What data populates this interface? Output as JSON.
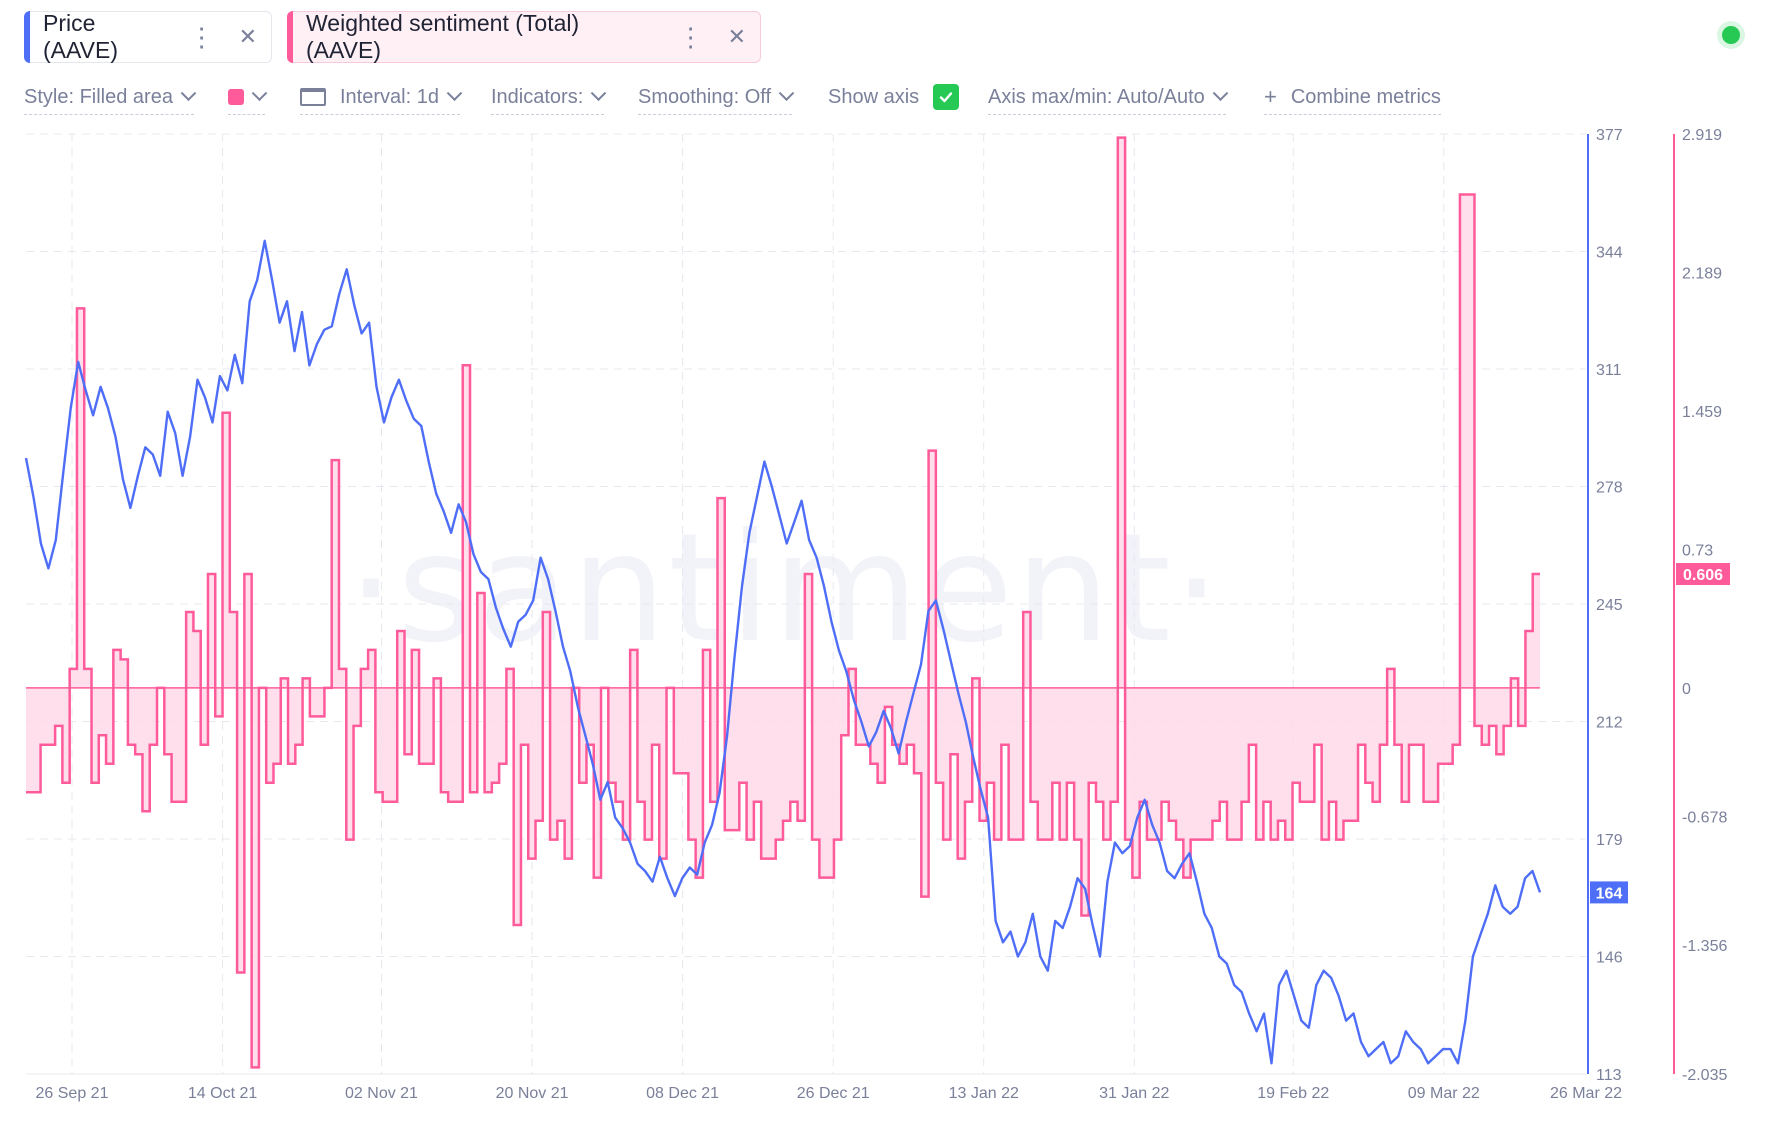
{
  "tabs": [
    {
      "label": "Price (AAVE)",
      "color": "#4f6ef7"
    },
    {
      "label": "Weighted sentiment (Total) (AAVE)",
      "color": "#ff5b9b"
    }
  ],
  "toolbar": {
    "style": "Style: Filled area",
    "interval": "Interval: 1d",
    "indicators": "Indicators:",
    "smoothing": "Smoothing: Off",
    "show_axis": "Show axis",
    "axis_maxmin": "Axis max/min: Auto/Auto",
    "combine": "Combine metrics"
  },
  "watermark": "·santiment·",
  "chart_data": {
    "type": "line",
    "x_tick_labels": [
      "26 Sep 21",
      "14 Oct 21",
      "02 Nov 21",
      "20 Nov 21",
      "08 Dec 21",
      "26 Dec 21",
      "13 Jan 22",
      "31 Jan 22",
      "19 Feb 22",
      "09 Mar 22",
      "26 Mar 22"
    ],
    "x_range": [
      "2021-09-26",
      "2022-03-26"
    ],
    "y_left": {
      "ticks": [
        "377",
        "344",
        "311",
        "278",
        "245",
        "212",
        "179",
        "146",
        "113"
      ],
      "ylim": [
        113,
        377
      ],
      "current_label": "164",
      "color": "#4f6ef7"
    },
    "y_right": {
      "ticks": [
        "2.919",
        "2.189",
        "1.459",
        "0.73",
        "0",
        "-0.678",
        "-1.356",
        "-2.035"
      ],
      "ylim": [
        -2.035,
        2.919
      ],
      "current_label": "0.606",
      "color": "#ff5b9b"
    },
    "grid": true,
    "series": [
      {
        "name": "Price (AAVE)",
        "style": "line",
        "color": "#4f6ef7",
        "axis": "left",
        "values": [
          286,
          275,
          262,
          255,
          263,
          282,
          300,
          313,
          305,
          298,
          306,
          300,
          292,
          280,
          272,
          281,
          289,
          287,
          281,
          299,
          293,
          281,
          292,
          308,
          303,
          296,
          309,
          305,
          315,
          307,
          330,
          336,
          347,
          336,
          324,
          330,
          316,
          327,
          312,
          318,
          322,
          323,
          332,
          339,
          329,
          321,
          324,
          306,
          296,
          303,
          308,
          302,
          297,
          295,
          285,
          276,
          271,
          265,
          273,
          268,
          259,
          254,
          252,
          244,
          238,
          233,
          240,
          242,
          246,
          258,
          252,
          243,
          233,
          226,
          216,
          208,
          200,
          190,
          195,
          185,
          182,
          178,
          172,
          170,
          167,
          174,
          168,
          163,
          168,
          171,
          169,
          178,
          183,
          192,
          208,
          230,
          250,
          265,
          275,
          285,
          278,
          270,
          262,
          268,
          274,
          263,
          258,
          250,
          240,
          232,
          226,
          218,
          212,
          205,
          209,
          215,
          210,
          203,
          212,
          220,
          228,
          243,
          246,
          238,
          229,
          220,
          212,
          202,
          193,
          185,
          156,
          150,
          153,
          146,
          150,
          158,
          146,
          142,
          156,
          154,
          160,
          168,
          165,
          155,
          146,
          167,
          178,
          175,
          177,
          185,
          190,
          183,
          178,
          170,
          168,
          172,
          175,
          167,
          158,
          154,
          146,
          144,
          138,
          136,
          130,
          125,
          130,
          116,
          138,
          142,
          135,
          128,
          126,
          138,
          142,
          140,
          135,
          128,
          130,
          122,
          118,
          120,
          122,
          116,
          118,
          125,
          122,
          120,
          116,
          118,
          120,
          120,
          116,
          128,
          146,
          152,
          158,
          166,
          160,
          158,
          160,
          168,
          170,
          164
        ]
      },
      {
        "name": "Weighted sentiment (Total) (AAVE)",
        "style": "filled-area-step",
        "color": "#ff5b9b",
        "axis": "right",
        "values": [
          -0.55,
          -0.55,
          -0.3,
          -0.3,
          -0.2,
          -0.5,
          0.1,
          2.0,
          0.1,
          -0.5,
          -0.25,
          -0.4,
          0.2,
          0.15,
          -0.3,
          -0.35,
          -0.65,
          -0.3,
          0.0,
          -0.35,
          -0.6,
          -0.6,
          0.4,
          0.3,
          -0.3,
          0.6,
          -0.15,
          1.45,
          0.4,
          -1.5,
          0.6,
          -2.0,
          0.0,
          -0.5,
          -0.4,
          0.05,
          -0.4,
          -0.3,
          0.05,
          -0.15,
          -0.15,
          0.0,
          1.2,
          0.1,
          -0.8,
          -0.2,
          0.1,
          0.2,
          -0.55,
          -0.6,
          -0.6,
          0.3,
          -0.35,
          0.2,
          -0.4,
          -0.4,
          0.05,
          -0.55,
          -0.6,
          -0.6,
          1.7,
          -0.55,
          0.5,
          -0.55,
          -0.5,
          -0.4,
          0.1,
          -1.25,
          -0.3,
          -0.9,
          -0.7,
          0.4,
          -0.8,
          -0.7,
          -0.9,
          0.0,
          -0.5,
          -0.3,
          -1.0,
          0.0,
          -0.5,
          -0.6,
          -0.8,
          0.2,
          -0.6,
          -0.8,
          -0.3,
          -0.9,
          0.0,
          -0.45,
          -0.45,
          -0.8,
          -1.0,
          0.2,
          -0.6,
          1.0,
          -0.75,
          -0.75,
          -0.5,
          -0.8,
          -0.6,
          -0.9,
          -0.9,
          -0.8,
          -0.7,
          -0.6,
          -0.7,
          0.6,
          -0.8,
          -1.0,
          -1.0,
          -0.8,
          -0.25,
          0.1,
          -0.3,
          -0.3,
          -0.4,
          -0.5,
          -0.1,
          -0.3,
          -0.4,
          -0.3,
          -0.45,
          -1.1,
          1.25,
          -0.5,
          -0.8,
          -0.35,
          -0.9,
          -0.6,
          0.05,
          -0.7,
          -0.5,
          -0.8,
          -0.3,
          -0.8,
          -0.8,
          0.4,
          -0.6,
          -0.8,
          -0.8,
          -0.5,
          -0.8,
          -0.5,
          -0.8,
          -1.2,
          -0.5,
          -0.6,
          -0.8,
          -0.6,
          2.9,
          -0.8,
          -1.0,
          -0.6,
          -0.8,
          -0.8,
          -0.6,
          -0.7,
          -0.8,
          -1.0,
          -0.8,
          -0.8,
          -0.8,
          -0.7,
          -0.6,
          -0.8,
          -0.8,
          -0.6,
          -0.3,
          -0.8,
          -0.6,
          -0.8,
          -0.7,
          -0.8,
          -0.5,
          -0.6,
          -0.6,
          -0.3,
          -0.8,
          -0.6,
          -0.8,
          -0.7,
          -0.7,
          -0.3,
          -0.5,
          -0.6,
          -0.3,
          0.1,
          -0.3,
          -0.6,
          -0.3,
          -0.3,
          -0.6,
          -0.6,
          -0.4,
          -0.4,
          -0.3,
          2.6,
          2.6,
          -0.2,
          -0.3,
          -0.2,
          -0.35,
          -0.2,
          0.05,
          -0.2,
          0.3,
          0.6
        ]
      }
    ]
  }
}
